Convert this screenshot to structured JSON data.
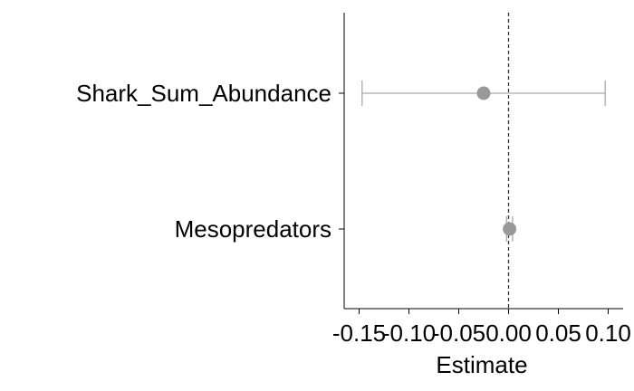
{
  "chart_data": {
    "type": "scatter",
    "subtype": "coefficient-plot",
    "title": "",
    "xlabel": "Estimate",
    "ylabel": "",
    "xlim": [
      -0.165,
      0.115
    ],
    "x_ticks": [
      -0.15,
      -0.1,
      -0.05,
      0.0,
      0.05,
      0.1
    ],
    "x_tick_labels": [
      "-0.15",
      "-0.10",
      "-0.05",
      "0.00",
      "0.05",
      "0.10"
    ],
    "reference_line": {
      "x": 0,
      "style": "dashed",
      "color": "#333333"
    },
    "categories": [
      "Shark_Sum_Abundance",
      "Mesopredators"
    ],
    "estimates": [
      {
        "term": "Shark_Sum_Abundance",
        "estimate": -0.025,
        "ci_low": -0.147,
        "ci_high": 0.097
      },
      {
        "term": "Mesopredators",
        "estimate": 0.001,
        "ci_low": -0.002,
        "ci_high": 0.004
      }
    ],
    "grid": false,
    "legend": "none",
    "point_color": "#999999",
    "errorbar_color": "#aaaaaa"
  }
}
